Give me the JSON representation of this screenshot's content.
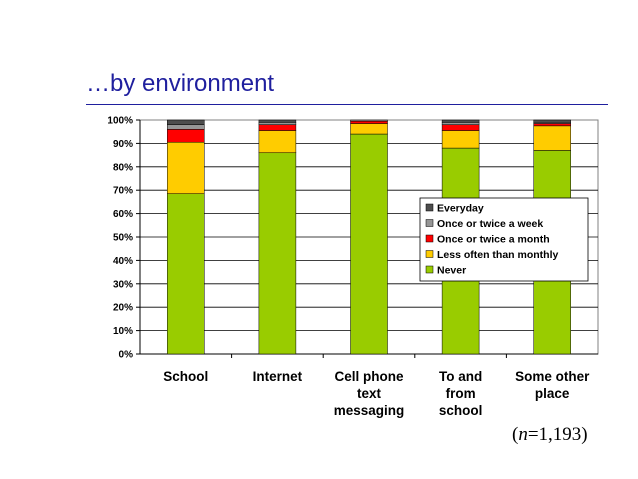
{
  "slide": {
    "title": "…by environment",
    "note_n": "n",
    "note_value": "=1,193)",
    "note_open": "("
  },
  "chart_data": {
    "type": "bar",
    "stacked": true,
    "percent": true,
    "categories": [
      [
        "School"
      ],
      [
        "Internet"
      ],
      [
        "Cell phone",
        "text",
        "messaging"
      ],
      [
        "To and",
        "from",
        "school"
      ],
      [
        "Some other",
        "place"
      ]
    ],
    "series": [
      {
        "name": "Never",
        "color": "#99cc00",
        "values": [
          68.5,
          86,
          94,
          88,
          87
        ]
      },
      {
        "name": "Less often than monthly",
        "color": "#ffcc00",
        "values": [
          22,
          9.5,
          4.5,
          7.5,
          10.5
        ]
      },
      {
        "name": "Once or twice a month",
        "color": "#ff0000",
        "values": [
          5.5,
          2.5,
          1,
          2.5,
          1
        ]
      },
      {
        "name": "Once or twice a week",
        "color": "#969696",
        "values": [
          2,
          1,
          0.5,
          1,
          0.5
        ]
      },
      {
        "name": "Everyday",
        "color": "#4d4d4d",
        "values": [
          2,
          1,
          0,
          1,
          1
        ]
      }
    ],
    "legend_order": [
      "Everyday",
      "Once or twice a week",
      "Once or twice a month",
      "Less often than monthly",
      "Never"
    ],
    "legend_position": "right-middle",
    "ylim": [
      0,
      100
    ],
    "yticks": [
      "0%",
      "10%",
      "20%",
      "30%",
      "40%",
      "50%",
      "60%",
      "70%",
      "80%",
      "90%",
      "100%"
    ],
    "grid": true
  }
}
